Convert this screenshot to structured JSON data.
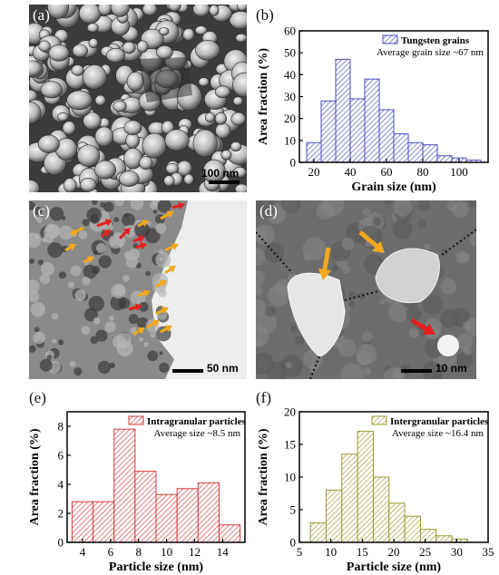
{
  "panels": {
    "a": {
      "label": "(a)",
      "scale": "100 nm"
    },
    "c": {
      "label": "(c)",
      "scale": "50 nm"
    },
    "d": {
      "label": "(d)",
      "scale": "10 nm"
    }
  },
  "chart_data": [
    {
      "panel_label": "(b)",
      "type": "bar",
      "x": [
        20,
        28,
        36,
        44,
        52,
        60,
        68,
        76,
        84,
        92,
        100,
        108
      ],
      "values": [
        9,
        28,
        47,
        29,
        38,
        24,
        13,
        9,
        8,
        3,
        2,
        1
      ],
      "bin_width": 8,
      "xlabel": "Grain size (nm)",
      "ylabel": "Area fraction (%)",
      "xlim": [
        12,
        116
      ],
      "ylim": [
        0,
        60
      ],
      "xticks": [
        20,
        40,
        60,
        80,
        100
      ],
      "yticks": [
        0,
        10,
        20,
        30,
        40,
        50,
        60
      ],
      "legend": "Tungsten grains",
      "annotation": "Average grain size ~67 nm",
      "color": "#4a4ac0",
      "legend_position": "top-right"
    },
    {
      "panel_label": "(e)",
      "type": "bar",
      "x": [
        4,
        5.5,
        7,
        8.5,
        10,
        11.5,
        13,
        14.5
      ],
      "values": [
        2.8,
        2.8,
        7.8,
        4.9,
        3.3,
        3.7,
        4.1,
        1.2
      ],
      "bin_width": 1.5,
      "xlabel": "Particle size (nm)",
      "ylabel": "Area fraction (%)",
      "xlim": [
        2.9,
        15.6
      ],
      "ylim": [
        0,
        9
      ],
      "xticks": [
        4,
        6,
        8,
        10,
        12,
        14
      ],
      "yticks": [
        0,
        2,
        4,
        6,
        8
      ],
      "legend": "Intragranular particles",
      "annotation": "Average size ~8.5 nm",
      "color": "#d23a3a",
      "legend_position": "top-right"
    },
    {
      "panel_label": "(f)",
      "type": "bar",
      "x": [
        8,
        10.5,
        13,
        15.5,
        18,
        20.5,
        23,
        25.5,
        28,
        30.5
      ],
      "values": [
        3,
        8,
        13.5,
        17,
        10,
        6,
        4,
        2,
        1,
        0.5
      ],
      "bin_width": 2.5,
      "xlabel": "Particle size (nm)",
      "ylabel": "Area fraction (%)",
      "xlim": [
        5,
        35
      ],
      "ylim": [
        0,
        20
      ],
      "xticks": [
        5,
        10,
        15,
        20,
        25,
        30,
        35
      ],
      "yticks": [
        0,
        5,
        10,
        15,
        20
      ],
      "legend": "Intergranular particles",
      "annotation": "Average size ~16.4 nm",
      "color": "#9a9a30",
      "legend_position": "top-right"
    }
  ]
}
